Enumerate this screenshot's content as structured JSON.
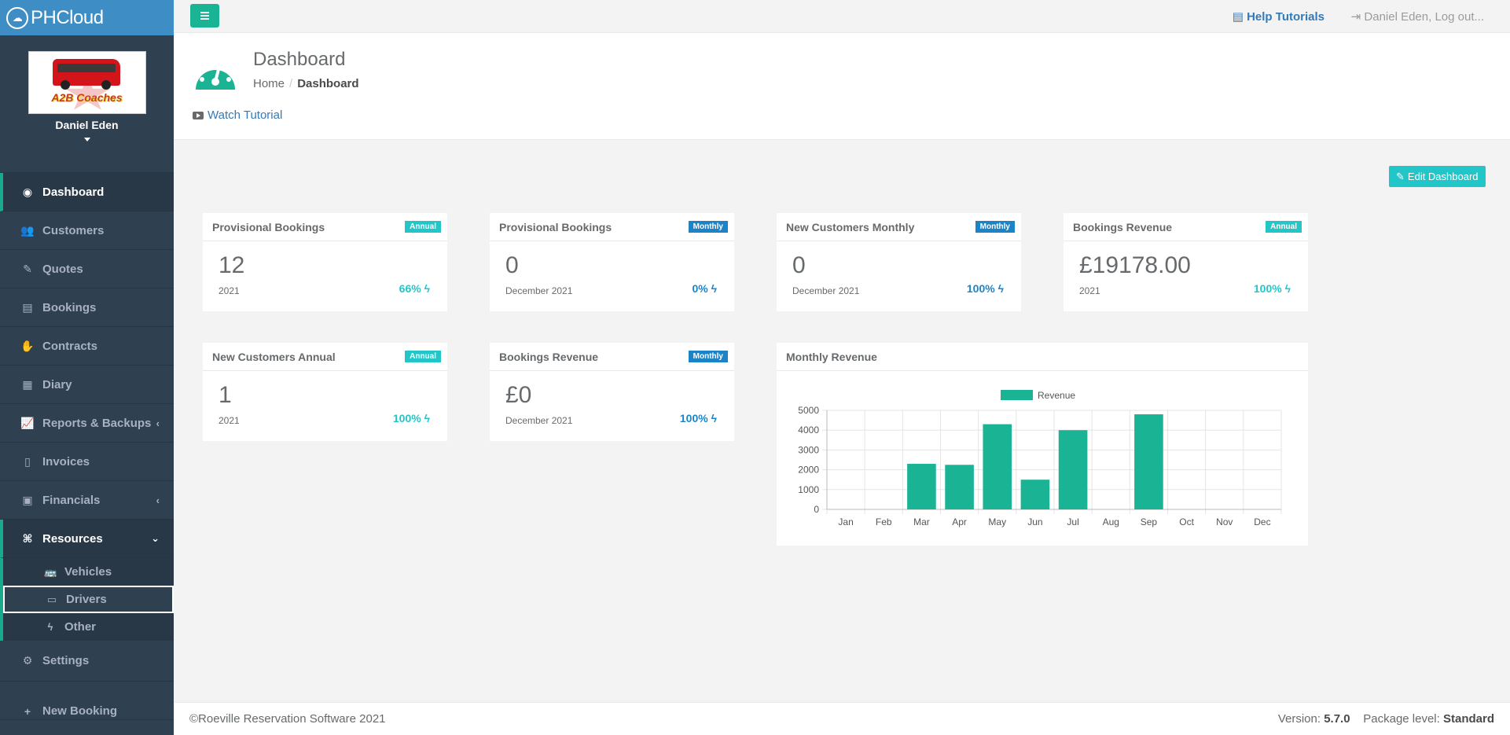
{
  "brand": {
    "name": "PHCloud"
  },
  "profile": {
    "company": "A2B Coaches",
    "user": "Daniel Eden"
  },
  "nav": {
    "dashboard": "Dashboard",
    "customers": "Customers",
    "quotes": "Quotes",
    "bookings": "Bookings",
    "contracts": "Contracts",
    "diary": "Diary",
    "reports": "Reports & Backups",
    "invoices": "Invoices",
    "financials": "Financials",
    "resources": "Resources",
    "vehicles": "Vehicles",
    "drivers": "Drivers",
    "other": "Other",
    "settings": "Settings",
    "new_booking": "New Booking"
  },
  "topbar": {
    "help": "Help Tutorials",
    "logout": "Daniel Eden, Log out..."
  },
  "heading": {
    "title": "Dashboard",
    "crumb_home": "Home",
    "crumb_current": "Dashboard",
    "tutorial": "Watch Tutorial"
  },
  "edit_dashboard": "Edit Dashboard",
  "widgets": [
    {
      "title": "Provisional Bookings",
      "badge": "Annual",
      "value": "12",
      "period": "2021",
      "pct": "66%"
    },
    {
      "title": "Provisional Bookings",
      "badge": "Monthly",
      "value": "0",
      "period": "December 2021",
      "pct": "0%"
    },
    {
      "title": "New Customers Monthly",
      "badge": "Monthly",
      "value": "0",
      "period": "December 2021",
      "pct": "100%"
    },
    {
      "title": "Bookings Revenue",
      "badge": "Annual",
      "value": "£19178.00",
      "period": "2021",
      "pct": "100%"
    },
    {
      "title": "New Customers Annual",
      "badge": "Annual",
      "value": "1",
      "period": "2021",
      "pct": "100%"
    },
    {
      "title": "Bookings Revenue",
      "badge": "Monthly",
      "value": "£0",
      "period": "December 2021",
      "pct": "100%"
    }
  ],
  "revenue_widget": {
    "title": "Monthly Revenue"
  },
  "chart_data": {
    "type": "bar",
    "categories": [
      "Jan",
      "Feb",
      "Mar",
      "Apr",
      "May",
      "Jun",
      "Jul",
      "Aug",
      "Sep",
      "Oct",
      "Nov",
      "Dec"
    ],
    "series": [
      {
        "name": "Revenue",
        "values": [
          0,
          0,
          2300,
          2250,
          4300,
          1500,
          4000,
          0,
          4800,
          0,
          0,
          0
        ]
      }
    ],
    "yticks": [
      "0",
      "1000",
      "2000",
      "3000",
      "4000",
      "5000"
    ],
    "ylim": [
      0,
      5000
    ],
    "legend": "top-center",
    "grid": true,
    "color": "#1ab394"
  },
  "footer": {
    "copyright": "©Roeville Reservation Software 2021",
    "version_label": "Version:",
    "version": "5.7.0",
    "package_label": "Package level:",
    "package": "Standard"
  }
}
